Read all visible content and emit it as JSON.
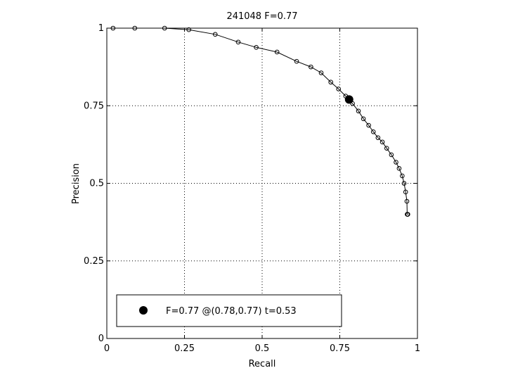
{
  "chart_data": {
    "type": "line",
    "title": "241048 F=0.77",
    "xlabel": "Recall",
    "ylabel": "Precision",
    "xlim": [
      0,
      1
    ],
    "ylim": [
      0,
      1
    ],
    "grid": true,
    "xticks": [
      0,
      0.25,
      0.5,
      0.75,
      1
    ],
    "yticks": [
      0,
      0.25,
      0.5,
      0.75,
      1
    ],
    "xtick_labels": [
      "0",
      "0.25",
      "0.5",
      "0.75",
      "1"
    ],
    "ytick_labels": [
      "0",
      "0.25",
      "0.5",
      "0.75",
      "1"
    ],
    "series": [
      {
        "x": [
          0.02,
          0.09,
          0.186,
          0.264,
          0.349,
          0.423,
          0.481,
          0.548,
          0.611,
          0.657,
          0.69,
          0.721,
          0.746,
          0.769,
          0.791,
          0.81,
          0.826,
          0.843,
          0.858,
          0.873,
          0.887,
          0.901,
          0.916,
          0.931,
          0.941,
          0.951,
          0.957,
          0.962,
          0.966,
          0.967,
          0.968,
          0.969
        ],
        "y": [
          1.0,
          1.0,
          1.0,
          0.995,
          0.98,
          0.955,
          0.938,
          0.923,
          0.893,
          0.875,
          0.856,
          0.826,
          0.804,
          0.781,
          0.757,
          0.733,
          0.708,
          0.687,
          0.666,
          0.647,
          0.633,
          0.613,
          0.592,
          0.568,
          0.548,
          0.524,
          0.5,
          0.472,
          0.442,
          0.4,
          0.4,
          0.4
        ],
        "color": "#000000",
        "marker": "open-circle"
      }
    ],
    "highlight_point": {
      "x": 0.78,
      "y": 0.77,
      "color": "#000000"
    },
    "legend": {
      "position": "bottom-left",
      "text": "F=0.77 @(0.78,0.77) t=0.53"
    }
  }
}
